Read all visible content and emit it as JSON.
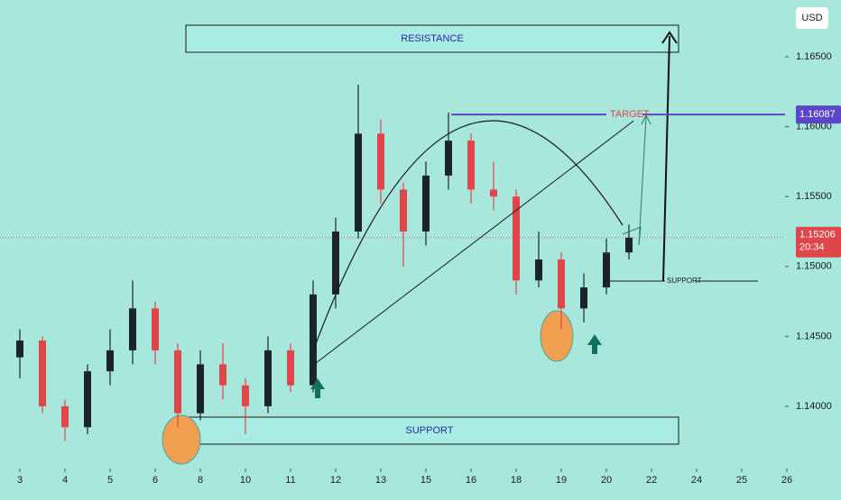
{
  "chart_data": {
    "type": "candlestick",
    "currency": "USD",
    "x": [
      0,
      0.5,
      1,
      1.5,
      2,
      2.5,
      3,
      3.5,
      4,
      4.5,
      5,
      5.5,
      6,
      6.5,
      7,
      7.5,
      8,
      8.5,
      9,
      9.5,
      10,
      10.5,
      11,
      11.5,
      12,
      12.5,
      13,
      13.5
    ],
    "open": [
      1.1435,
      1.1447,
      1.14,
      1.1385,
      1.1425,
      1.144,
      1.147,
      1.144,
      1.1395,
      1.143,
      1.1415,
      1.14,
      1.144,
      1.1415,
      1.148,
      1.1525,
      1.1595,
      1.1555,
      1.1525,
      1.1565,
      1.159,
      1.1555,
      1.155,
      1.149,
      1.1505,
      1.147,
      1.1485,
      1.151
    ],
    "high": [
      1.1455,
      1.145,
      1.1405,
      1.143,
      1.1455,
      1.149,
      1.1475,
      1.1445,
      1.144,
      1.1445,
      1.142,
      1.145,
      1.1445,
      1.149,
      1.1535,
      1.163,
      1.1605,
      1.156,
      1.1575,
      1.161,
      1.1595,
      1.1575,
      1.1555,
      1.1525,
      1.151,
      1.1495,
      1.152,
      1.153
    ],
    "low": [
      1.142,
      1.1395,
      1.1375,
      1.138,
      1.1415,
      1.143,
      1.143,
      1.1385,
      1.139,
      1.1405,
      1.138,
      1.1395,
      1.141,
      1.141,
      1.147,
      1.152,
      1.1545,
      1.15,
      1.1515,
      1.1555,
      1.1545,
      1.154,
      1.148,
      1.1485,
      1.1455,
      1.146,
      1.148,
      1.1505
    ],
    "close": [
      1.1447,
      1.14,
      1.1385,
      1.1425,
      1.144,
      1.147,
      1.144,
      1.1395,
      1.143,
      1.1415,
      1.14,
      1.144,
      1.1415,
      1.148,
      1.1525,
      1.1595,
      1.1555,
      1.1525,
      1.1565,
      1.159,
      1.1555,
      1.155,
      1.149,
      1.1505,
      1.147,
      1.1485,
      1.151,
      1.15206
    ],
    "up_color": "#1c2428",
    "down_color": "#e0454a",
    "xlim": [
      -0.44,
      16.96
    ],
    "xticks": [
      {
        "value": 0,
        "label": "3"
      },
      {
        "value": 1,
        "label": "4"
      },
      {
        "value": 2,
        "label": "5"
      },
      {
        "value": 3,
        "label": "6"
      },
      {
        "value": 4,
        "label": "8"
      },
      {
        "value": 5,
        "label": "10"
      },
      {
        "value": 6,
        "label": "11"
      },
      {
        "value": 7,
        "label": "12"
      },
      {
        "value": 8,
        "label": "13"
      },
      {
        "value": 9,
        "label": "15"
      },
      {
        "value": 10,
        "label": "16"
      },
      {
        "value": 11,
        "label": "18"
      },
      {
        "value": 12,
        "label": "19"
      },
      {
        "value": 13,
        "label": "20"
      },
      {
        "value": 14,
        "label": "22"
      },
      {
        "value": 15,
        "label": "24"
      },
      {
        "value": 16,
        "label": "25"
      },
      {
        "value": 17,
        "label": "26"
      }
    ],
    "ylim": [
      1.13555,
      1.16906
    ],
    "yticks": [
      {
        "value": 1.14,
        "label": "1.14000"
      },
      {
        "value": 1.145,
        "label": "1.14500"
      },
      {
        "value": 1.15,
        "label": "1.15000"
      },
      {
        "value": 1.155,
        "label": "1.15500"
      },
      {
        "value": 1.16,
        "label": "1.16000"
      },
      {
        "value": 1.165,
        "label": "1.16500"
      }
    ],
    "target_price": {
      "value": 1.16087,
      "label": "1.16087"
    },
    "last_price": {
      "value": 1.15206,
      "label": "1.15206"
    },
    "countdown": "20:34",
    "annotations": {
      "resistance": "RESISTANCE",
      "support_zone": "SUPPORT",
      "support_line": "SUPPORT",
      "target": "TARGET"
    }
  }
}
